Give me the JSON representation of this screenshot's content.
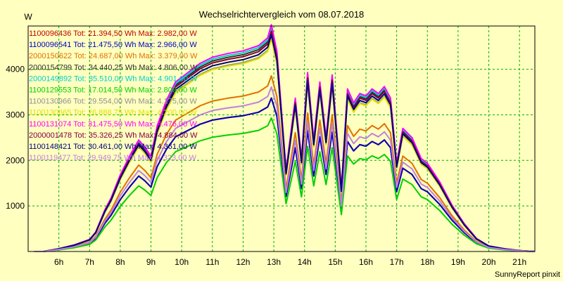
{
  "chart_data": {
    "type": "line",
    "title": "Wechselrichtervergleich vom 08.07.2018",
    "ylabel": "W",
    "footer": "SunnyReport pinxit",
    "x_ticks": [
      "6h",
      "7h",
      "8h",
      "9h",
      "10h",
      "11h",
      "12h",
      "13h",
      "14h",
      "15h",
      "16h",
      "17h",
      "18h",
      "19h",
      "20h",
      "21h"
    ],
    "y_ticks": [
      1000,
      2000,
      3000,
      4000
    ],
    "xlim": [
      5.0,
      21.5
    ],
    "ylim": [
      0,
      4950
    ],
    "grid": true,
    "legend_position": "top-left",
    "x_hours": [
      5.2,
      5.5,
      6,
      6.5,
      7,
      7.2,
      7.5,
      7.7,
      8,
      8.3,
      8.6,
      8.8,
      9,
      9.2,
      9.5,
      9.8,
      10,
      10.3,
      10.6,
      11,
      11.5,
      12,
      12.5,
      12.8,
      12.92,
      13.1,
      13.4,
      13.7,
      13.9,
      14.1,
      14.3,
      14.5,
      14.7,
      14.9,
      15.2,
      15.4,
      15.6,
      15.8,
      16,
      16.2,
      16.4,
      16.6,
      16.8,
      17,
      17.2,
      17.5,
      17.8,
      18,
      18.4,
      18.8,
      19.2,
      19.6,
      20,
      20.5,
      21,
      21.5
    ],
    "series": [
      {
        "name": "1100096436 Tot: 21.394,50 Wh Max: 2.982,00 W",
        "color": "#c00000",
        "scale": 0.69
      },
      {
        "name": "1100096541 Tot: 21.475,50 Wh Max: 2.966,00 W",
        "color": "#0000c0",
        "scale": 0.69
      },
      {
        "name": "2000150622 Tot: 24.687,00 Wh Max: 3.379,00 W",
        "color": "#e07000",
        "scale": 0.79
      },
      {
        "name": "2000154799 Tot: 34.440,25 Wh Max: 4.806,00 W",
        "color": "#303030",
        "scale": 1.0
      },
      {
        "name": "2000149892 Tot: 35.510,00 Wh Max: 4.901,00 W",
        "color": "#00d0d0",
        "scale": 1.01
      },
      {
        "name": "1100129553 Tot: 17.014,50 Wh Max: 2.809,00 W",
        "color": "#00d000",
        "scale": 0.6
      },
      {
        "name": "1100130966 Tot: 29.554,00 Wh Max: 4.175,00 W",
        "color": "#909090",
        "scale": 0.96
      },
      {
        "name": "1100130665 Tot: 26.888,75 Wh Max: 4.200,00 W",
        "color": "#e0e000",
        "scale": 0.955
      },
      {
        "name": "1100131074 Tot: 31.475,50 Wh Max: 4.476,00 W",
        "color": "#ff00ff",
        "scale": 1.02
      },
      {
        "name": "2000001478 Tot: 35.326,25 Wh Max: 4.884,00 W",
        "color": "#800040",
        "scale": 0.99
      },
      {
        "name": "1100148421 Tot: 30.461,00 Wh Max: 4.361,00 W",
        "color": "#000080",
        "scale": 0.975
      },
      {
        "name": "1100119477 Tot: 29.949,75 Wh Max: 4.323,00 W",
        "color": "#c080e0",
        "scale": 0.74
      }
    ],
    "base_profile": [
      0,
      0,
      60,
      140,
      260,
      420,
      900,
      1150,
      1650,
      2050,
      2400,
      2250,
      2050,
      2700,
      3250,
      3650,
      3750,
      3900,
      4050,
      4180,
      4260,
      4320,
      4430,
      4600,
      4880,
      4300,
      1750,
      3300,
      2000,
      3850,
      2400,
      3650,
      2450,
      3800,
      1350,
      3500,
      3200,
      3400,
      3350,
      3500,
      3400,
      3550,
      3300,
      1900,
      2650,
      2450,
      2000,
      1900,
      1500,
      1000,
      600,
      280,
      120,
      60,
      20,
      0
    ]
  }
}
